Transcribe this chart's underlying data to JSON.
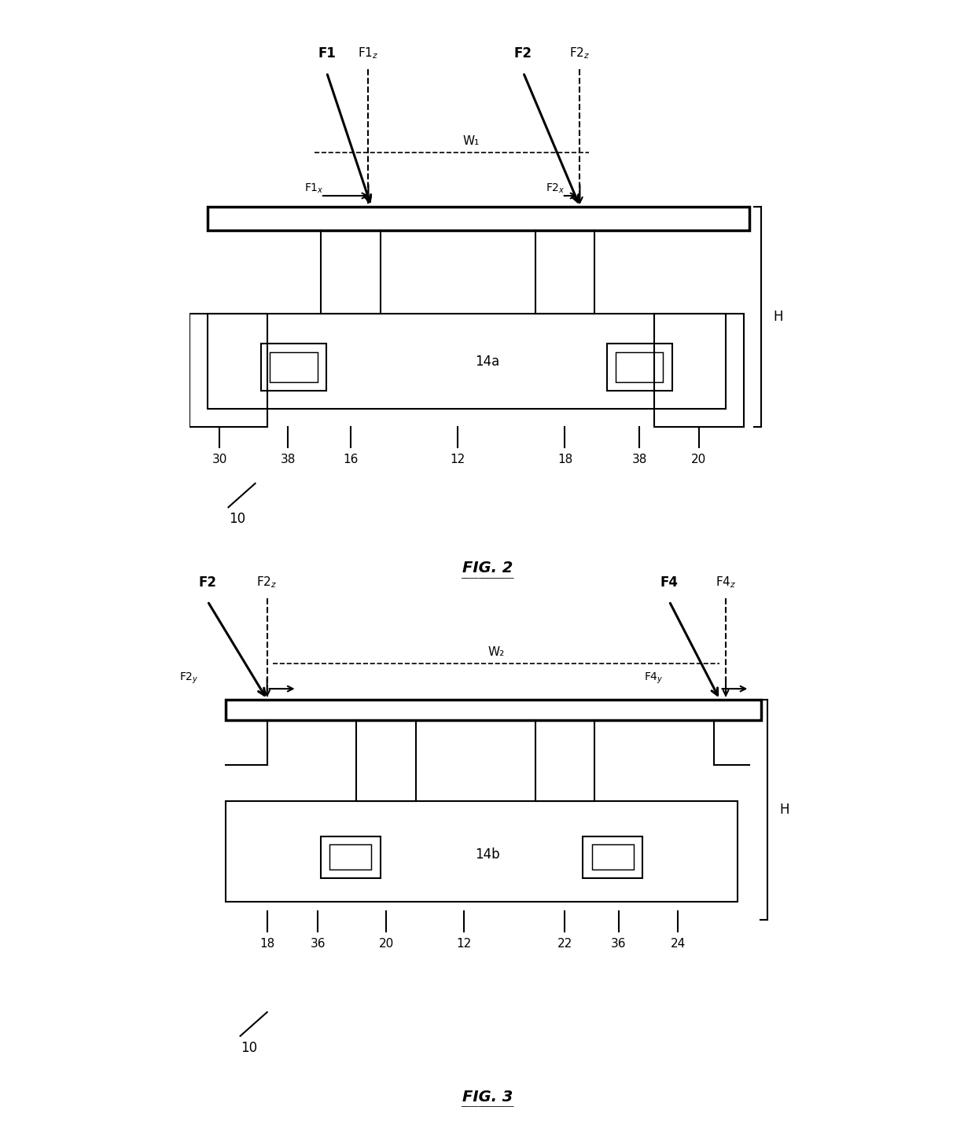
{
  "fig_title1": "FIG. 2",
  "fig_title2": "FIG. 3",
  "background_color": "#ffffff",
  "line_color": "#000000",
  "fig2": {
    "labels_bottom": [
      "30",
      "38",
      "16",
      "12",
      "18",
      "38",
      "20"
    ],
    "label_14a": "14a",
    "label_W1": "W₁",
    "label_H": "H",
    "label_10": "10"
  },
  "fig3": {
    "labels_bottom": [
      "18",
      "36",
      "20",
      "12",
      "22",
      "36",
      "24"
    ],
    "label_14b": "14b",
    "label_W2": "W₂",
    "label_H": "H",
    "label_10": "10"
  }
}
